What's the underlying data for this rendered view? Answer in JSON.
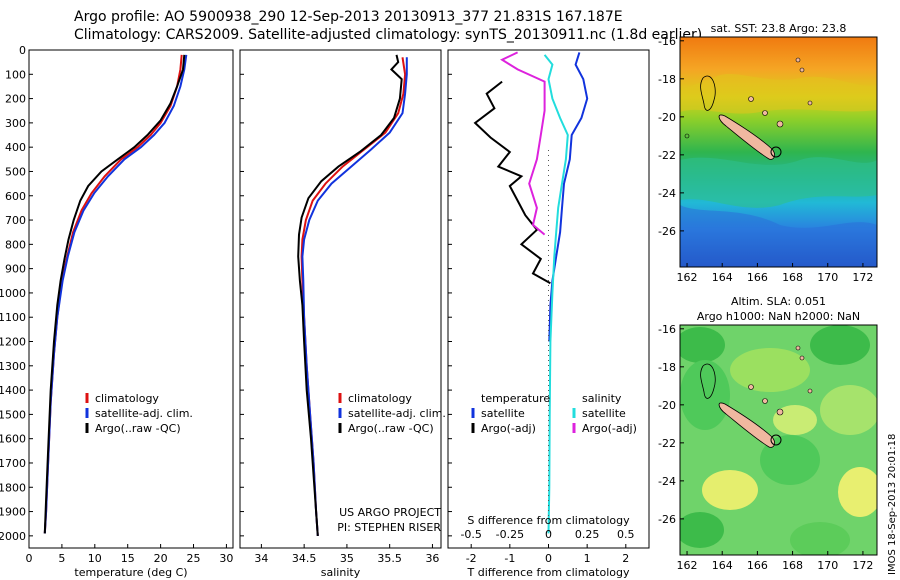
{
  "header": {
    "line1": "Argo profile: AO 5900938_290 12-Sep-2013 20130913_377 21.831S 167.187E",
    "line2": "Climatology: CARS2009. Satellite-adjusted climatology: synTS_20130911.nc (1.8d earlier)"
  },
  "side_label": "IMOS 18-Sep-2013 20:01:18",
  "colors": {
    "climatology": "#dd1111",
    "satellite": "#1133dd",
    "argo": "#000000",
    "sal_satellite": "#22dddd",
    "sal_argo": "#dd22dd"
  },
  "chart_data": [
    {
      "type": "line",
      "id": "temperature",
      "xlabel": "temperature (deg C)",
      "xlim": [
        0,
        31
      ],
      "ylim": [
        0,
        2050
      ],
      "xticks": [
        0,
        5,
        10,
        15,
        20,
        25,
        30
      ],
      "yticks": [
        0,
        100,
        200,
        300,
        400,
        500,
        600,
        700,
        800,
        900,
        1000,
        1100,
        1200,
        1300,
        1400,
        1500,
        1600,
        1700,
        1800,
        1900,
        2000
      ],
      "legend": [
        "climatology",
        "satellite-adj. clim.",
        "Argo(..raw -QC)"
      ],
      "series": [
        {
          "name": "climatology",
          "color": "#dd1111",
          "points": [
            [
              23.2,
              20
            ],
            [
              23,
              80
            ],
            [
              22.5,
              150
            ],
            [
              21.5,
              230
            ],
            [
              20,
              300
            ],
            [
              18.5,
              350
            ],
            [
              16.5,
              400
            ],
            [
              14,
              450
            ],
            [
              11.5,
              520
            ],
            [
              9.5,
              590
            ],
            [
              8,
              660
            ],
            [
              6.7,
              750
            ],
            [
              5.8,
              850
            ],
            [
              5,
              950
            ],
            [
              4.3,
              1100
            ],
            [
              3.8,
              1250
            ],
            [
              3.3,
              1450
            ],
            [
              2.9,
              1700
            ],
            [
              2.6,
              1900
            ],
            [
              2.4,
              1990
            ]
          ]
        },
        {
          "name": "satellite-adj. clim.",
          "color": "#1133dd",
          "points": [
            [
              23.9,
              20
            ],
            [
              23.6,
              80
            ],
            [
              23,
              150
            ],
            [
              22,
              230
            ],
            [
              20.6,
              300
            ],
            [
              19,
              350
            ],
            [
              17,
              400
            ],
            [
              14.5,
              450
            ],
            [
              12,
              520
            ],
            [
              9.9,
              590
            ],
            [
              8.3,
              660
            ],
            [
              6.9,
              750
            ],
            [
              5.9,
              850
            ],
            [
              5.1,
              950
            ],
            [
              4.3,
              1100
            ],
            [
              3.8,
              1250
            ],
            [
              3.3,
              1450
            ],
            [
              2.9,
              1700
            ],
            [
              2.6,
              1900
            ],
            [
              2.4,
              1990
            ]
          ]
        },
        {
          "name": "Argo(..raw -QC)",
          "color": "#000000",
          "points": [
            [
              23.6,
              20
            ],
            [
              23.4,
              80
            ],
            [
              22.5,
              150
            ],
            [
              21.5,
              220
            ],
            [
              20,
              290
            ],
            [
              18,
              350
            ],
            [
              16,
              400
            ],
            [
              13.5,
              450
            ],
            [
              11,
              500
            ],
            [
              9,
              560
            ],
            [
              7.8,
              620
            ],
            [
              6.8,
              700
            ],
            [
              6.0,
              780
            ],
            [
              5.4,
              860
            ],
            [
              4.8,
              950
            ],
            [
              4.3,
              1050
            ],
            [
              3.8,
              1200
            ],
            [
              3.3,
              1400
            ],
            [
              2.9,
              1650
            ],
            [
              2.6,
              1850
            ],
            [
              2.4,
              1990
            ]
          ]
        }
      ]
    },
    {
      "type": "line",
      "id": "salinity",
      "xlabel": "salinity",
      "xlim": [
        33.75,
        36.1
      ],
      "ylim": [
        0,
        2050
      ],
      "xticks": [
        34,
        34.5,
        35,
        35.5,
        36
      ],
      "legend": [
        "climatology",
        "satellite-adj. clim.",
        "Argo(..raw -QC)"
      ],
      "annotations": [
        "US ARGO PROJECT",
        "PI: STEPHEN RISER"
      ],
      "series": [
        {
          "name": "climatology",
          "color": "#dd1111",
          "points": [
            [
              35.65,
              30
            ],
            [
              35.68,
              100
            ],
            [
              35.66,
              180
            ],
            [
              35.6,
              260
            ],
            [
              35.45,
              340
            ],
            [
              35.2,
              410
            ],
            [
              34.95,
              480
            ],
            [
              34.75,
              550
            ],
            [
              34.6,
              620
            ],
            [
              34.52,
              700
            ],
            [
              34.48,
              780
            ],
            [
              34.47,
              850
            ],
            [
              34.48,
              950
            ],
            [
              34.5,
              1100
            ],
            [
              34.53,
              1300
            ],
            [
              34.57,
              1500
            ],
            [
              34.61,
              1700
            ],
            [
              34.64,
              1900
            ],
            [
              34.66,
              2000
            ]
          ]
        },
        {
          "name": "satellite-adj. clim.",
          "color": "#1133dd",
          "points": [
            [
              35.7,
              30
            ],
            [
              35.7,
              100
            ],
            [
              35.68,
              180
            ],
            [
              35.65,
              260
            ],
            [
              35.5,
              340
            ],
            [
              35.28,
              410
            ],
            [
              35.05,
              480
            ],
            [
              34.82,
              550
            ],
            [
              34.66,
              620
            ],
            [
              34.56,
              700
            ],
            [
              34.5,
              780
            ],
            [
              34.48,
              850
            ],
            [
              34.49,
              950
            ],
            [
              34.5,
              1100
            ],
            [
              34.53,
              1300
            ],
            [
              34.57,
              1500
            ],
            [
              34.61,
              1700
            ],
            [
              34.64,
              1900
            ],
            [
              34.66,
              2000
            ]
          ]
        },
        {
          "name": "Argo(..raw -QC)",
          "color": "#000000",
          "points": [
            [
              35.58,
              20
            ],
            [
              35.6,
              50
            ],
            [
              35.52,
              80
            ],
            [
              35.64,
              120
            ],
            [
              35.62,
              200
            ],
            [
              35.55,
              280
            ],
            [
              35.4,
              350
            ],
            [
              35.15,
              420
            ],
            [
              34.9,
              480
            ],
            [
              34.7,
              540
            ],
            [
              34.55,
              610
            ],
            [
              34.47,
              690
            ],
            [
              34.44,
              760
            ],
            [
              34.43,
              850
            ],
            [
              34.45,
              950
            ],
            [
              34.48,
              1050
            ],
            [
              34.5,
              1200
            ],
            [
              34.53,
              1400
            ],
            [
              34.58,
              1600
            ],
            [
              34.62,
              1800
            ],
            [
              34.66,
              2000
            ]
          ]
        }
      ]
    },
    {
      "type": "line",
      "id": "difference",
      "xlabel": "T difference from climatology",
      "xlabel_top": "S difference from climatology",
      "xlim": [
        -2.6,
        2.6
      ],
      "ylim": [
        0,
        2050
      ],
      "xticks": [
        -2,
        -1,
        0,
        1,
        2
      ],
      "xticks_top": [
        "-0.5",
        "-0.25",
        "0",
        "0.25",
        "0.5"
      ],
      "legend_headers": [
        "temperature",
        "salinity"
      ],
      "legend": [
        "satellite",
        "Argo(-adj)",
        "satellite",
        "Argo(-adj)"
      ],
      "series": [
        {
          "name": "satellite",
          "color": "#1133dd",
          "points": [
            [
              0.8,
              10
            ],
            [
              0.7,
              60
            ],
            [
              0.9,
              120
            ],
            [
              1.0,
              200
            ],
            [
              0.85,
              280
            ],
            [
              0.6,
              350
            ],
            [
              0.55,
              450
            ],
            [
              0.4,
              550
            ],
            [
              0.35,
              650
            ],
            [
              0.3,
              750
            ],
            [
              0.2,
              850
            ],
            [
              0.1,
              950
            ],
            [
              0.05,
              1050
            ],
            [
              0.02,
              1200
            ]
          ]
        },
        {
          "name": "Argo(-adj)",
          "color": "#000000",
          "points": [
            [
              -1.2,
              130
            ],
            [
              -1.6,
              180
            ],
            [
              -1.4,
              240
            ],
            [
              -1.9,
              300
            ],
            [
              -1.5,
              360
            ],
            [
              -1.0,
              420
            ],
            [
              -1.3,
              480
            ],
            [
              -0.7,
              520
            ],
            [
              -1.0,
              560
            ],
            [
              -0.8,
              620
            ],
            [
              -0.6,
              680
            ],
            [
              -0.3,
              740
            ],
            [
              -0.7,
              800
            ],
            [
              -0.2,
              860
            ],
            [
              -0.4,
              920
            ],
            [
              0.05,
              960
            ]
          ]
        },
        {
          "name": "salinity satellite",
          "color": "#22dddd",
          "points": [
            [
              -0.1,
              20
            ],
            [
              0.1,
              60
            ],
            [
              0.0,
              120
            ],
            [
              0.1,
              200
            ],
            [
              0.3,
              280
            ],
            [
              0.5,
              350
            ],
            [
              0.45,
              450
            ],
            [
              0.35,
              550
            ],
            [
              0.25,
              650
            ],
            [
              0.2,
              750
            ],
            [
              0.15,
              850
            ],
            [
              0.1,
              1000
            ],
            [
              0.05,
              1200
            ],
            [
              0.03,
              1500
            ],
            [
              0.02,
              1800
            ],
            [
              0.0,
              1990
            ]
          ]
        },
        {
          "name": "salinity Argo(-adj)",
          "color": "#dd22dd",
          "points": [
            [
              -0.8,
              10
            ],
            [
              -1.2,
              40
            ],
            [
              -0.8,
              80
            ],
            [
              -0.1,
              130
            ],
            [
              -0.1,
              250
            ],
            [
              -0.2,
              350
            ],
            [
              -0.3,
              450
            ],
            [
              -0.5,
              550
            ],
            [
              -0.3,
              650
            ],
            [
              -0.4,
              720
            ],
            [
              -0.1,
              760
            ]
          ]
        }
      ]
    },
    {
      "type": "heatmap",
      "id": "sst_map",
      "title": "sat. SST: 23.8 Argo: 23.8",
      "xticks": [
        162,
        164,
        166,
        168,
        170,
        172
      ],
      "yticks": [
        -16,
        -18,
        -20,
        -22,
        -24,
        -26
      ],
      "xlim": [
        161.6,
        172.8
      ],
      "ylim": [
        -27.9,
        -15.8
      ]
    },
    {
      "type": "heatmap",
      "id": "sla_map",
      "title_lines": [
        "Altim. SLA: 0.051",
        "Argo h1000: NaN h2000: NaN"
      ],
      "xticks": [
        162,
        164,
        166,
        168,
        170,
        172
      ],
      "yticks": [
        -16,
        -18,
        -20,
        -22,
        -24,
        -26
      ],
      "xlim": [
        161.6,
        172.8
      ],
      "ylim": [
        -27.9,
        -15.8
      ]
    }
  ]
}
